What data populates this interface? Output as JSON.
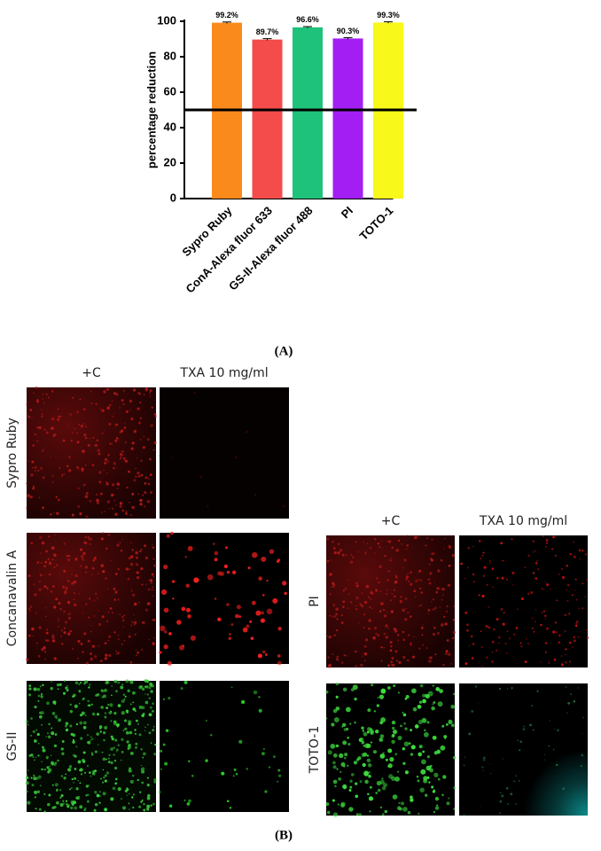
{
  "chart_data": {
    "type": "bar",
    "ylabel": "percentage reduction",
    "categories": [
      "Sypro Ruby",
      "ConA-Alexa fluor 633",
      "GS-II-Alexa fluor 488",
      "PI",
      "TOTO-1"
    ],
    "values": [
      99.2,
      89.7,
      96.6,
      90.3,
      99.3
    ],
    "value_labels": [
      "99.2%",
      "89.7%",
      "96.6%",
      "90.3%",
      "99.3%"
    ],
    "errors": [
      0.4,
      0.5,
      0.4,
      0.5,
      0.4
    ],
    "colors": [
      "#fb8a1c",
      "#f44b4b",
      "#1fc27a",
      "#a21ef2",
      "#f8f81a"
    ],
    "reference_line": 50,
    "ylim": [
      0,
      100
    ],
    "yticks": [
      0,
      20,
      40,
      60,
      80,
      100
    ]
  },
  "panels": {
    "a_label": "(A)",
    "b_label": "(B)",
    "left": {
      "columns": [
        "+C",
        "TXA 10 mg/ml"
      ],
      "rows": [
        "Sypro Ruby",
        "Concanavalin A",
        "GS-II"
      ]
    },
    "right": {
      "columns": [
        "+C",
        "TXA 10 mg/ml"
      ],
      "rows": [
        "PI",
        "TOTO-1"
      ]
    }
  }
}
